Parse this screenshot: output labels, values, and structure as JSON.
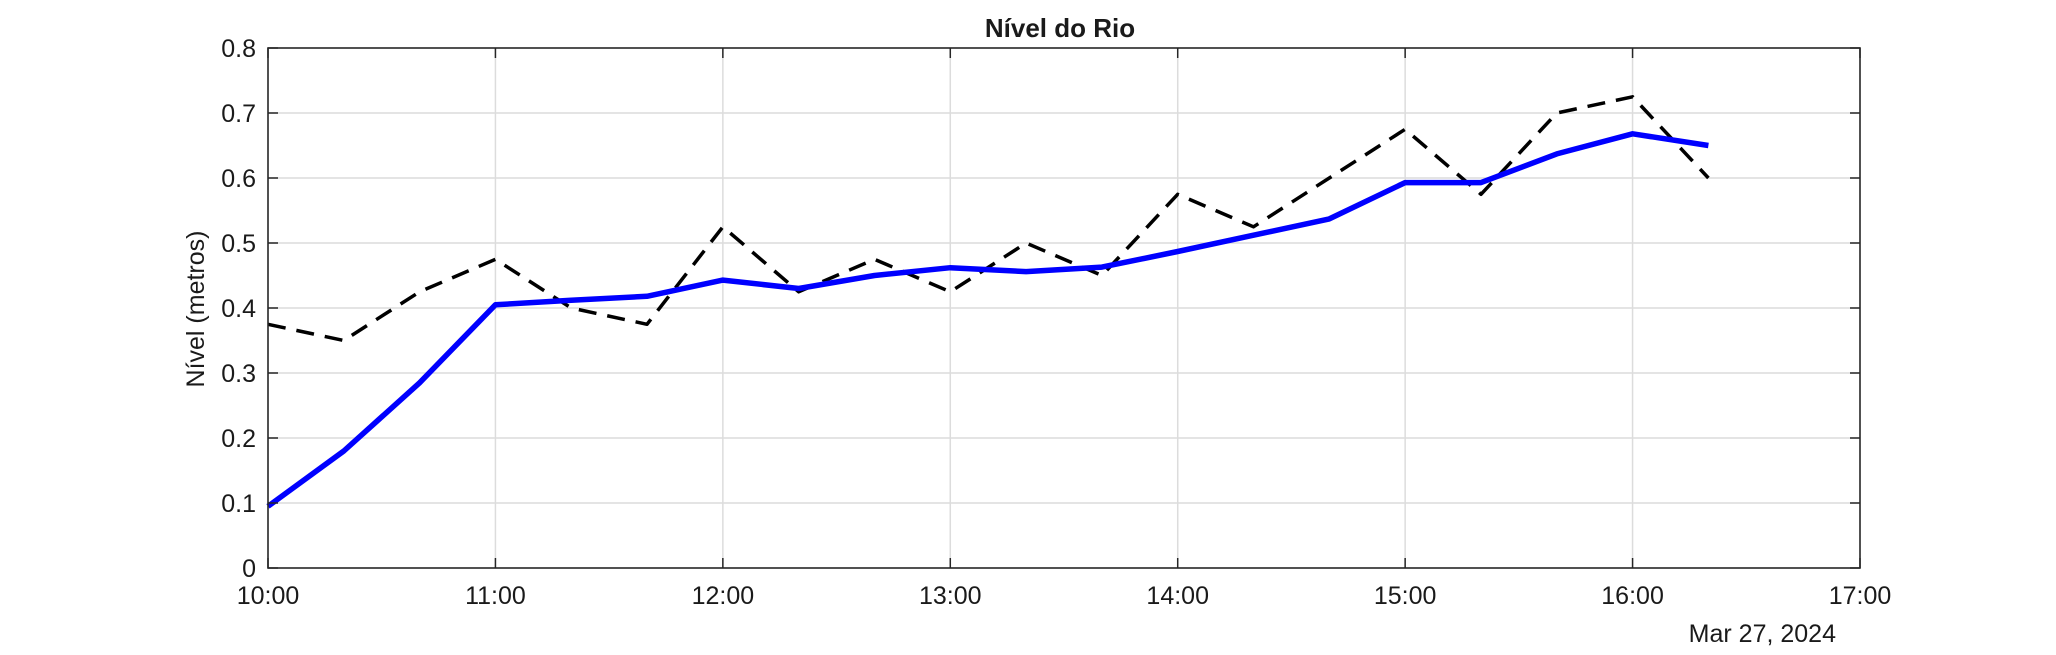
{
  "chart_data": {
    "type": "line",
    "title": "Nível do Rio",
    "xlabel": "",
    "ylabel": "Nível (metros)",
    "date_label": "Mar 27, 2024",
    "x_tick_labels": [
      "10:00",
      "11:00",
      "12:00",
      "13:00",
      "14:00",
      "15:00",
      "16:00",
      "17:00"
    ],
    "y_tick_labels": [
      "0",
      "0.1",
      "0.2",
      "0.3",
      "0.4",
      "0.5",
      "0.6",
      "0.7",
      "0.8"
    ],
    "xlim": [
      "10:00",
      "17:00"
    ],
    "ylim": [
      0,
      0.8
    ],
    "grid": true,
    "box": true,
    "legend": "none",
    "x": [
      "10:00",
      "10:20",
      "10:40",
      "11:00",
      "11:20",
      "11:40",
      "12:00",
      "12:20",
      "12:40",
      "13:00",
      "13:20",
      "13:40",
      "14:00",
      "14:20",
      "14:40",
      "15:00",
      "15:20",
      "15:40",
      "16:00",
      "16:20"
    ],
    "series": [
      {
        "style": "dashed",
        "color": "#000000",
        "values": [
          0.375,
          0.35,
          0.425,
          0.475,
          0.4,
          0.375,
          0.525,
          0.425,
          0.475,
          0.425,
          0.5,
          0.45,
          0.575,
          0.525,
          0.6,
          0.675,
          0.575,
          0.7,
          0.725,
          0.6
        ]
      },
      {
        "style": "solid",
        "color": "#0000ff",
        "values": [
          0.095,
          0.18,
          0.285,
          0.405,
          0.412,
          0.418,
          0.443,
          0.43,
          0.45,
          0.462,
          0.456,
          0.463,
          0.487,
          0.512,
          0.537,
          0.593,
          0.593,
          0.637,
          0.668,
          0.65
        ]
      }
    ]
  }
}
